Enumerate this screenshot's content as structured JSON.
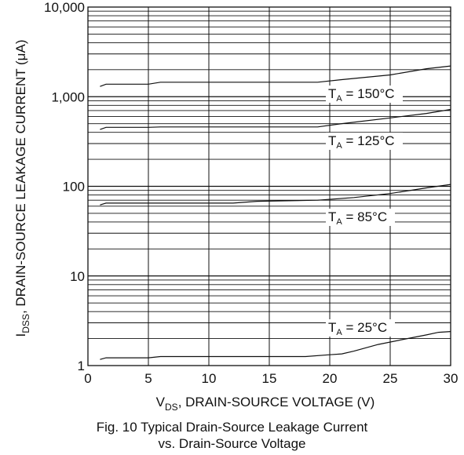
{
  "chart_data": {
    "type": "line",
    "y_scale": "log",
    "xlim": [
      0,
      30
    ],
    "ylim": [
      1,
      10000
    ],
    "x_ticks": [
      "0",
      "5",
      "10",
      "15",
      "20",
      "25",
      "30"
    ],
    "y_ticks": [
      "1",
      "10",
      "100",
      "1,000",
      "10,000"
    ],
    "xlabel": {
      "main": "V",
      "sub": "DS",
      "rest": ", DRAIN-SOURCE VOLTAGE (V)"
    },
    "ylabel": {
      "main": "I",
      "sub": "DSS",
      "rest": ", DRAIN-SOURCE LEAKAGE CURRENT (μA)"
    },
    "grid": true,
    "series": [
      {
        "name": "T_A = 150°C",
        "label": {
          "main": "T",
          "sub": "A",
          "rest": " = 150°C"
        },
        "x": [
          1,
          1.5,
          5,
          6,
          19,
          21,
          25,
          28,
          30
        ],
        "y": [
          1300,
          1380,
          1380,
          1450,
          1450,
          1550,
          1750,
          2050,
          2200
        ]
      },
      {
        "name": "T_A = 125°C",
        "label": {
          "main": "T",
          "sub": "A",
          "rest": " = 125°C"
        },
        "x": [
          1,
          1.5,
          5,
          6,
          19,
          21,
          25,
          28,
          30
        ],
        "y": [
          430,
          455,
          455,
          460,
          460,
          500,
          580,
          650,
          720
        ]
      },
      {
        "name": "T_A = 85°C",
        "label": {
          "main": "T",
          "sub": "A",
          "rest": " = 85°C"
        },
        "x": [
          1,
          1.5,
          12,
          14,
          19,
          22,
          25,
          28,
          30
        ],
        "y": [
          62,
          65,
          65,
          68,
          70,
          75,
          83,
          96,
          105
        ]
      },
      {
        "name": "T_A = 25°C",
        "label": {
          "main": "T",
          "sub": "A",
          "rest": " = 25°C"
        },
        "x": [
          1,
          1.5,
          5,
          6,
          18,
          20,
          21,
          22,
          24,
          26,
          28,
          29,
          30
        ],
        "y": [
          1.17,
          1.22,
          1.22,
          1.26,
          1.26,
          1.32,
          1.35,
          1.45,
          1.72,
          1.95,
          2.2,
          2.35,
          2.4
        ]
      }
    ]
  },
  "caption": {
    "line1": "Fig. 10 Typical Drain-Source Leakage Current",
    "line2": "vs. Drain-Source Voltage"
  }
}
